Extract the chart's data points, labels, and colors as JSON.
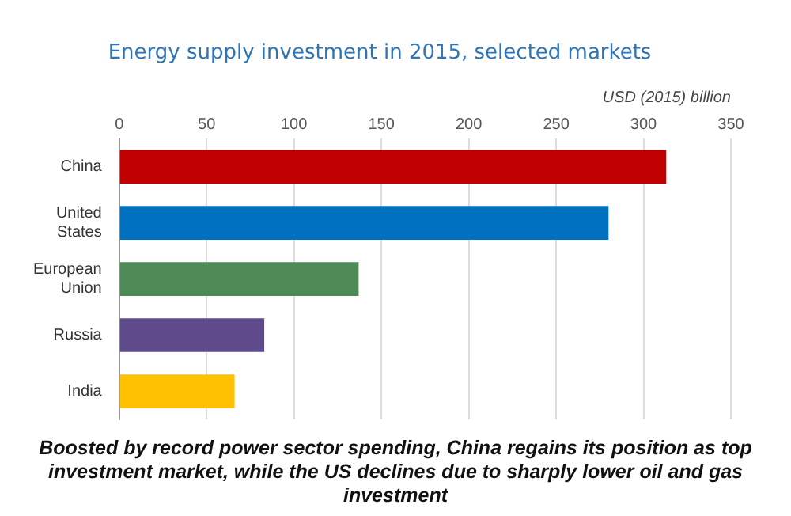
{
  "chart_data": {
    "type": "bar",
    "orientation": "horizontal",
    "title": "Energy supply investment in 2015, selected markets",
    "xlabel": "USD (2015) billion",
    "categories": [
      [
        "China"
      ],
      [
        "United",
        "States"
      ],
      [
        "European",
        "Union"
      ],
      [
        "Russia"
      ],
      [
        "India"
      ]
    ],
    "values": [
      313,
      280,
      137,
      83,
      66
    ],
    "colors": [
      "#c00000",
      "#0070c0",
      "#4e8a55",
      "#5f4b8b",
      "#ffc000"
    ],
    "xlim": [
      0,
      350
    ],
    "xticks": [
      0,
      50,
      100,
      150,
      200,
      250,
      300,
      350
    ],
    "grid": "x",
    "legend": false,
    "annotations": [
      "Boosted by record power sector spending, China regains its position as top investment market, while the US declines due to sharply lower oil and gas investment"
    ]
  }
}
